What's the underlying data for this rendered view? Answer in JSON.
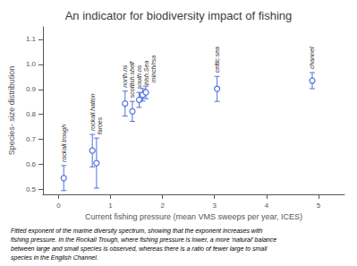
{
  "chart_data": {
    "type": "scatter",
    "title": "An indicator for biodiversity impact of fishing",
    "xlabel": "Current fishing pressure (mean VMS sweeps per year, ICES)",
    "ylabel": "Species- size distribution",
    "x": [
      0.1,
      0.65,
      0.73,
      1.28,
      1.42,
      1.55,
      1.62,
      1.68,
      3.05,
      4.88
    ],
    "values": [
      0.545,
      0.655,
      0.605,
      0.843,
      0.812,
      0.858,
      0.878,
      0.888,
      0.902,
      0.935
    ],
    "yerr": [
      0.05,
      0.065,
      0.1,
      0.05,
      0.04,
      0.03,
      0.025,
      0.025,
      0.05,
      0.032
    ],
    "point_labels": [
      "rockall.trough",
      "rockall.hatton",
      "faroes",
      "north.ns",
      "scottish.shelf",
      "south.ns",
      "irish.Sea",
      "minch/rsa",
      "celtic.sea",
      "channel"
    ],
    "xlim": [
      -0.3,
      5.5
    ],
    "ylim": [
      0.48,
      1.15
    ],
    "xticks": [
      0,
      1,
      2,
      3,
      4,
      5
    ],
    "yticks": [
      0.5,
      0.6,
      0.7,
      0.8,
      0.9,
      {
        "value": 1,
        "label": "1.0"
      },
      1.1
    ],
    "grid": false,
    "caption": [
      "Fitted exponent of the marine diversity spectrum, showing that the exponent increases with",
      "fishing pressure. In the Rockall Trough, where fishing pressure is lower, a more ‘natural’ balance",
      "between large and small species is observed, whereas there is a ratio of fewer large to small",
      "species in the English Channel."
    ]
  }
}
